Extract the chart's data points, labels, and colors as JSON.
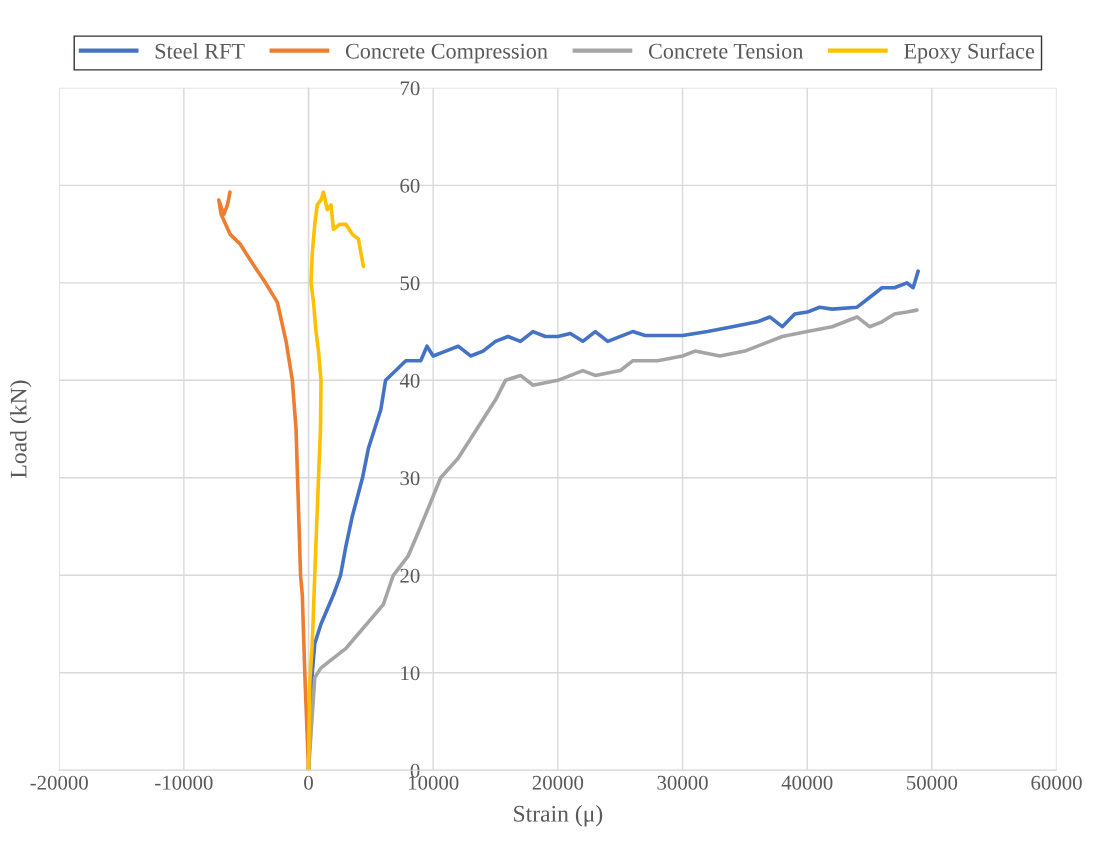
{
  "chart_data": {
    "type": "line",
    "xlabel": "Strain (μ)",
    "ylabel": "Load (kN)",
    "xlim": [
      -20000,
      60000
    ],
    "xticks": [
      -20000,
      -10000,
      0,
      10000,
      20000,
      30000,
      40000,
      50000,
      60000
    ],
    "ylim": [
      0,
      70
    ],
    "yticks": [
      0,
      10,
      20,
      30,
      40,
      50,
      60,
      70
    ],
    "grid": true,
    "legend": "top",
    "marker": "none",
    "line_style": "solid",
    "series": [
      {
        "name": "Steel RFT",
        "color": "#4472c4",
        "x": [
          0,
          300,
          500,
          1000,
          2000,
          2570,
          3000,
          3500,
          4330,
          4800,
          5300,
          5800,
          6180,
          7000,
          7800,
          9000,
          9500,
          10000,
          11000,
          12000,
          13000,
          14000,
          15000,
          16000,
          17000,
          18000,
          19000,
          20000,
          21000,
          22000,
          23000,
          24000,
          26000,
          27000,
          30000,
          32000,
          34000,
          36000,
          37000,
          38000,
          39000,
          40000,
          41000,
          42000,
          44000,
          45000,
          46000,
          47000,
          48000,
          48500,
          48900
        ],
        "values": [
          0,
          10,
          13,
          15,
          18,
          20,
          23,
          26,
          30,
          33,
          35,
          37,
          40,
          41,
          42,
          42,
          43.5,
          42.5,
          43,
          43.5,
          42.5,
          43,
          44,
          44.5,
          44,
          45,
          44.5,
          44.5,
          44.8,
          44,
          45,
          44,
          45,
          44.6,
          44.6,
          45,
          45.5,
          46,
          46.5,
          45.5,
          46.8,
          47,
          47.5,
          47.3,
          47.5,
          48.5,
          49.5,
          49.5,
          50,
          49.5,
          51.2
        ]
      },
      {
        "name": "Concrete Compression",
        "color": "#ed7d31",
        "x": [
          0,
          -300,
          -500,
          -640,
          -880,
          -1000,
          -1300,
          -1800,
          -2500,
          -3450,
          -4500,
          -5500,
          -6300,
          -7000,
          -7200,
          -6800,
          -6500,
          -6300
        ],
        "values": [
          0,
          10,
          18,
          20,
          30,
          35,
          40,
          44,
          48,
          50,
          52,
          54,
          55,
          57,
          58.5,
          57,
          58,
          59.3
        ]
      },
      {
        "name": "Concrete Tension",
        "color": "#a5a5a5",
        "x": [
          0,
          500,
          1000,
          2000,
          3000,
          4000,
          5000,
          6000,
          6800,
          8000,
          9000,
          10600,
          12000,
          13000,
          14000,
          15000,
          15800,
          17000,
          18000,
          20000,
          22000,
          23000,
          25000,
          26000,
          28000,
          30000,
          31000,
          33000,
          35000,
          37000,
          38000,
          40000,
          42000,
          44000,
          45000,
          46000,
          47000,
          48000,
          48800
        ],
        "values": [
          0,
          9.5,
          10.5,
          11.5,
          12.5,
          14,
          15.5,
          17,
          20,
          22,
          25,
          30,
          32,
          34,
          36,
          38,
          40,
          40.5,
          39.5,
          40,
          41,
          40.5,
          41,
          42,
          42,
          42.5,
          43,
          42.5,
          43,
          44,
          44.5,
          45,
          45.5,
          46.5,
          45.5,
          46,
          46.8,
          47,
          47.2
        ]
      },
      {
        "name": "Epoxy Surface",
        "color": "#ffc000",
        "x": [
          0,
          100,
          300,
          500,
          800,
          960,
          1000,
          800,
          600,
          400,
          200,
          300,
          500,
          700,
          1000,
          1200,
          1500,
          1800,
          2000,
          2500,
          3000,
          3500,
          4000,
          4400
        ],
        "values": [
          0,
          9,
          13,
          20,
          30,
          35,
          40,
          43,
          45,
          48,
          50,
          53,
          56,
          58,
          58.5,
          59.3,
          57.5,
          58,
          55.5,
          56,
          56,
          55,
          54.5,
          51.7
        ]
      }
    ]
  }
}
